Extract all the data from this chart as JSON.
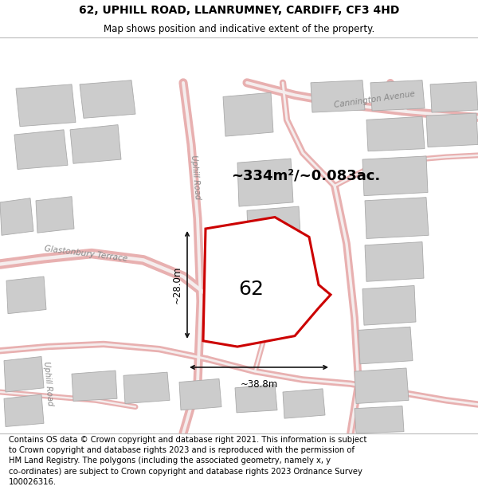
{
  "title": "62, UPHILL ROAD, LLANRUMNEY, CARDIFF, CF3 4HD",
  "subtitle": "Map shows position and indicative extent of the property.",
  "footer": "Contains OS data © Crown copyright and database right 2021. This information is subject\nto Crown copyright and database rights 2023 and is reproduced with the permission of\nHM Land Registry. The polygons (including the associated geometry, namely x, y\nco-ordinates) are subject to Crown copyright and database rights 2023 Ordnance Survey\n100026316.",
  "map_bg": "#f8f4f4",
  "road_color": "#e8b0b0",
  "road_center_color": "#f5eded",
  "building_color": "#cccccc",
  "building_edge": "#aaaaaa",
  "highlight_color": "#cc0000",
  "text_color": "#888888",
  "measure_color": "#111111",
  "area_text": "~334m²/~0.083ac.",
  "label_62": "62",
  "dim_width": "~38.8m",
  "dim_height": "~28.0m",
  "title_fontsize": 10,
  "subtitle_fontsize": 8.5,
  "footer_fontsize": 7.2,
  "area_fontsize": 13,
  "label_fontsize": 18,
  "dim_fontsize": 8.5
}
